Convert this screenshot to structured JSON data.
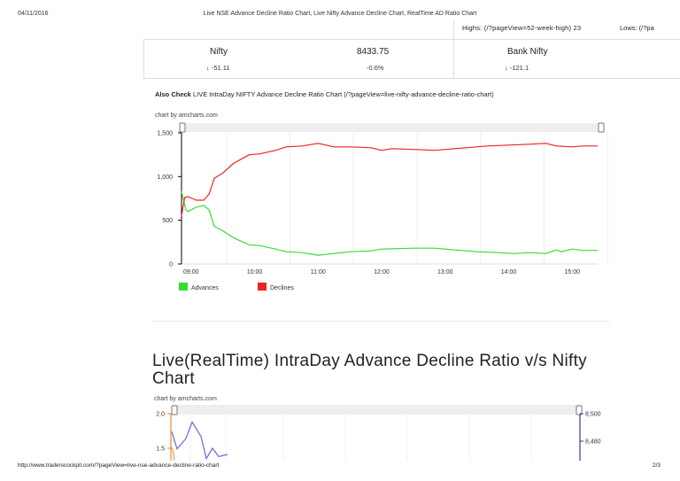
{
  "header": {
    "date": "04/11/2016",
    "title": "Live NSE Advance Decline Ratio Chart, Live Nifty Advance Decline Chart, RealTime AD Ratio Chart"
  },
  "top_links": {
    "highs": "Highs: (/?pageView=52-week-high) 23",
    "lows": "Lows: (/?pa"
  },
  "quotes": {
    "nifty": {
      "name": "Nifty",
      "value": "8433.75",
      "change": "-51.11",
      "percent": "-0.6%",
      "arrow": "↓"
    },
    "bank_nifty": {
      "name": "Bank Nifty",
      "change": "-121.1",
      "arrow": "↓"
    }
  },
  "also_check": {
    "label": "Also Check",
    "link": "LIVE IntraDay NIFTY Advance Decline Ratio Chart (/?pageView=live-nifty-advance-decline-ratio-chart)"
  },
  "section2_title": "Live(RealTime) IntraDay Advance Decline Ratio v/s Nifty Chart",
  "footer": {
    "url": "http://www.traderscockpit.com/?pageView=live-nse-advance-decline-ratio-chart",
    "page": "2/3"
  },
  "colors": {
    "advances": "#33dd33",
    "declines": "#ee2222",
    "ratio": "#6666ee",
    "axis_left2": "#ee8833",
    "axis_right2": "#3333bb"
  },
  "chart_data": [
    {
      "type": "line",
      "credit": "chart by amcharts.com",
      "title": "",
      "xlabel": "",
      "ylabel": "",
      "ylim": [
        0,
        1500
      ],
      "xlim": [
        "08:51",
        "15:24"
      ],
      "yticks": [
        "0",
        "500",
        "1,000",
        "1,500"
      ],
      "ytick_values": [
        0,
        500,
        1000,
        1500
      ],
      "xticks": [
        "09:00",
        "10:00",
        "11:00",
        "12:00",
        "13:00",
        "14:00",
        "15:00"
      ],
      "grid": true,
      "legend": {
        "placement": "bottom-left",
        "entries": [
          "Advances",
          "Declines"
        ]
      },
      "series": [
        {
          "name": "Advances",
          "x": [
            "08:51",
            "08:55",
            "08:57",
            "09:05",
            "09:12",
            "09:17",
            "09:22",
            "09:30",
            "09:40",
            "09:55",
            "10:05",
            "10:20",
            "10:30",
            "10:45",
            "11:00",
            "11:15",
            "11:30",
            "11:50",
            "12:00",
            "12:30",
            "12:50",
            "13:10",
            "13:30",
            "13:50",
            "14:05",
            "14:20",
            "14:35",
            "14:45",
            "14:50",
            "15:00",
            "15:10",
            "15:24"
          ],
          "values": [
            830,
            620,
            600,
            650,
            670,
            620,
            430,
            380,
            300,
            220,
            210,
            170,
            140,
            130,
            100,
            120,
            140,
            150,
            170,
            180,
            180,
            160,
            140,
            130,
            120,
            130,
            120,
            160,
            140,
            170,
            155,
            155
          ]
        },
        {
          "name": "Declines",
          "x": [
            "08:51",
            "08:54",
            "08:57",
            "09:05",
            "09:12",
            "09:17",
            "09:22",
            "09:30",
            "09:40",
            "09:55",
            "10:05",
            "10:20",
            "10:30",
            "10:45",
            "11:00",
            "11:15",
            "11:30",
            "11:50",
            "12:00",
            "12:10",
            "12:30",
            "12:50",
            "13:00",
            "13:20",
            "13:40",
            "14:00",
            "14:20",
            "14:35",
            "14:45",
            "15:00",
            "15:10",
            "15:24"
          ],
          "values": [
            550,
            760,
            770,
            730,
            730,
            800,
            980,
            1040,
            1150,
            1250,
            1260,
            1300,
            1340,
            1350,
            1380,
            1340,
            1340,
            1330,
            1300,
            1320,
            1310,
            1300,
            1310,
            1330,
            1350,
            1360,
            1370,
            1380,
            1350,
            1340,
            1350,
            1350
          ]
        }
      ]
    },
    {
      "type": "line",
      "credit": "chart by amcharts.com",
      "ylim": [
        1.35,
        2.0
      ],
      "yticks": [
        "2.0",
        "1.5"
      ],
      "ytick_values": [
        2.0,
        1.5
      ],
      "y2ticks": [
        "8,500",
        "8,480"
      ],
      "series": [
        {
          "name": "AD Ratio",
          "values": [
            1.74,
            1.49,
            1.64,
            1.88,
            1.67,
            1.35,
            1.5,
            1.38,
            1.41
          ]
        }
      ]
    }
  ]
}
